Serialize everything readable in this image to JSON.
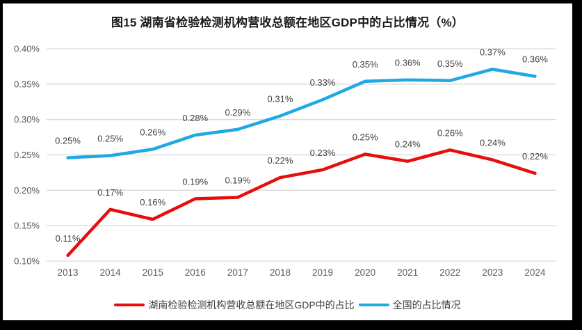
{
  "title": "图15 湖南省检验检测机构营收总额在地区GDP中的占比情况（%）",
  "styles": {
    "frame_border_color": "#000000",
    "canvas_background": "#ffffff",
    "grid_color": "#d9d9d9",
    "tick_text_color": "#595959",
    "data_label_color": "#404040",
    "title_color": "#1a1a1a",
    "legend_text_color": "#404040",
    "hunan_series_color": "#e80d0d",
    "national_series_color": "#1fa8e4"
  },
  "chart_data": {
    "type": "line",
    "title": "图15 湖南省检验检测机构营收总额在地区GDP中的占比情况（%）",
    "categories": [
      "2013",
      "2014",
      "2015",
      "2016",
      "2017",
      "2018",
      "2019",
      "2020",
      "2021",
      "2022",
      "2023",
      "2024"
    ],
    "series": [
      {
        "name": "湖南检验检测机构营收总额在地区GDP中的占比",
        "color": "#e80d0d",
        "values": [
          0.11,
          0.17,
          0.16,
          0.19,
          0.19,
          0.22,
          0.23,
          0.25,
          0.24,
          0.26,
          0.24,
          0.22
        ],
        "labels": [
          "0.11%",
          "0.17%",
          "0.16%",
          "0.19%",
          "0.19%",
          "0.22%",
          "0.23%",
          "0.25%",
          "0.24%",
          "0.26%",
          "0.24%",
          "0.22%"
        ],
        "plot_values": [
          0.108,
          0.173,
          0.159,
          0.188,
          0.19,
          0.218,
          0.229,
          0.251,
          0.241,
          0.257,
          0.243,
          0.224
        ]
      },
      {
        "name": "全国的占比情况",
        "color": "#1fa8e4",
        "values": [
          0.25,
          0.25,
          0.26,
          0.28,
          0.29,
          0.31,
          0.33,
          0.35,
          0.36,
          0.35,
          0.37,
          0.36
        ],
        "labels": [
          "0.25%",
          "0.25%",
          "0.26%",
          "0.28%",
          "0.29%",
          "0.31%",
          "0.33%",
          "0.35%",
          "0.36%",
          "0.35%",
          "0.37%",
          "0.36%"
        ],
        "plot_values": [
          0.246,
          0.249,
          0.258,
          0.278,
          0.286,
          0.305,
          0.328,
          0.354,
          0.356,
          0.355,
          0.371,
          0.361
        ]
      }
    ],
    "ylim": [
      0.1,
      0.4
    ],
    "y_tick_labels": [
      "0.40%",
      "0.35%",
      "0.30%",
      "0.25%",
      "0.20%",
      "0.15%",
      "0.10%"
    ],
    "grid": true,
    "data_labels": true,
    "legend_position": "bottom"
  }
}
